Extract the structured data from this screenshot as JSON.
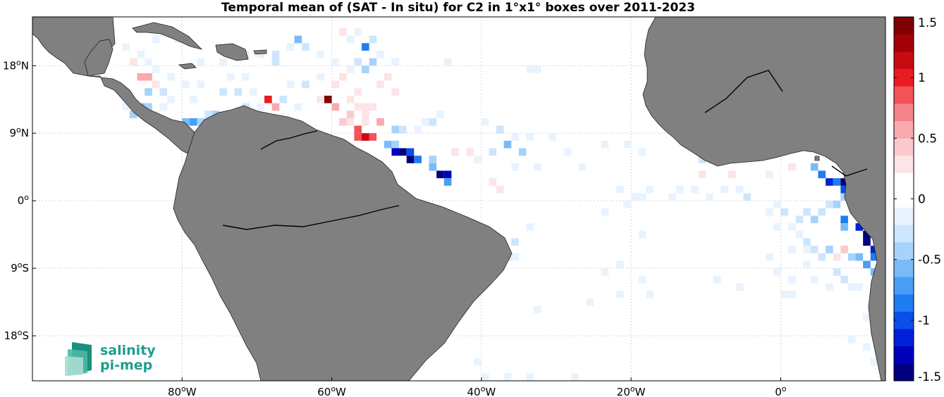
{
  "title": "Temporal mean of (SAT - In situ) for C2 in 1°x1° boxes over 2011-2023",
  "map": {
    "extent": {
      "lon": [
        -100,
        14
      ],
      "lat": [
        -24,
        24.5
      ]
    },
    "lon_ticks": [
      {
        "value": -80,
        "deg": "80",
        "hemi": "W"
      },
      {
        "value": -60,
        "deg": "60",
        "hemi": "W"
      },
      {
        "value": -40,
        "deg": "40",
        "hemi": "W"
      },
      {
        "value": -20,
        "deg": "20",
        "hemi": "W"
      },
      {
        "value": 0,
        "deg": "0",
        "hemi": ""
      }
    ],
    "lat_ticks": [
      {
        "value": 18,
        "deg": "18",
        "hemi": "N"
      },
      {
        "value": 9,
        "deg": "9",
        "hemi": "N"
      },
      {
        "value": 0,
        "deg": "0",
        "hemi": ""
      },
      {
        "value": -9,
        "deg": "9",
        "hemi": "S"
      },
      {
        "value": -18,
        "deg": "18",
        "hemi": "S"
      }
    ],
    "land_color": "#808080",
    "grid": "dotted"
  },
  "colorbar": {
    "min": -1.5,
    "max": 1.5,
    "ticks": [
      "1.5",
      "1",
      "0.5",
      "0",
      "-0.5",
      "-1",
      "-1.5"
    ],
    "tick_values": [
      1.5,
      1,
      0.5,
      0,
      -0.5,
      -1,
      -1.5
    ],
    "colors": [
      "#00007f",
      "#0000bb",
      "#0020d9",
      "#0a4fe8",
      "#1e7df0",
      "#4a9ef5",
      "#79bbf8",
      "#a6d3fb",
      "#cde6fd",
      "#e8f3fe",
      "#ffffff",
      "#ffffff",
      "#fde4e6",
      "#fbc9cd",
      "#f9a9ae",
      "#f6838a",
      "#f15359",
      "#ea1c23",
      "#c80b12",
      "#a30007",
      "#7f0000"
    ]
  },
  "logo": {
    "line1": "salinity",
    "line2": "pi-mep"
  },
  "chart_data": {
    "type": "heatmap",
    "title": "Temporal mean of (SAT - In situ) for C2 in 1°x1° boxes over 2011-2023",
    "cell_size_deg": 1,
    "value_range": [
      -1.5,
      1.5
    ],
    "cells": [
      [
        -55,
        15,
        0.2
      ],
      [
        -56,
        15,
        0.15
      ],
      [
        -57,
        14,
        0.25
      ],
      [
        -58,
        13,
        0.3
      ],
      [
        -57,
        12,
        0.35
      ],
      [
        -56,
        12,
        0.3
      ],
      [
        -55,
        12,
        0.25
      ],
      [
        -54,
        11,
        0.2
      ],
      [
        -53,
        11,
        0.15
      ],
      [
        -52,
        11,
        0.2
      ],
      [
        -56,
        11,
        0.35
      ],
      [
        -58,
        11,
        0.4
      ],
      [
        -59,
        10,
        0.4
      ],
      [
        -58,
        10,
        0.3
      ],
      [
        -56,
        10,
        0.25
      ],
      [
        -54,
        10,
        0.6
      ],
      [
        -53,
        9,
        0.15
      ],
      [
        -57,
        9,
        0.8
      ],
      [
        -55,
        8,
        0.9
      ],
      [
        -56,
        8,
        1.2
      ],
      [
        -57,
        8,
        0.8
      ],
      [
        -54,
        8,
        0.2
      ],
      [
        -53,
        7,
        -0.6
      ],
      [
        -52,
        7,
        -0.4
      ],
      [
        -51,
        6,
        -1.5
      ],
      [
        -52,
        6,
        -1.3
      ],
      [
        -50,
        6,
        -1.0
      ],
      [
        -50,
        5,
        -1.4
      ],
      [
        -49,
        5,
        -0.9
      ],
      [
        -47,
        5,
        -0.4
      ],
      [
        -47,
        4,
        -0.6
      ],
      [
        -46,
        3,
        -1.5
      ],
      [
        -45,
        3,
        -1.3
      ],
      [
        -45,
        2,
        -0.7
      ],
      [
        -52,
        9,
        -0.5
      ],
      [
        -51,
        9,
        -0.3
      ],
      [
        -49,
        9,
        -0.2
      ],
      [
        -48,
        10,
        -0.2
      ],
      [
        -47,
        10,
        -0.3
      ],
      [
        -46,
        11,
        -0.2
      ],
      [
        -44,
        11,
        0.15
      ],
      [
        -42,
        11,
        0.1
      ],
      [
        -40,
        10,
        -0.2
      ],
      [
        -38,
        9,
        -0.3
      ],
      [
        -36,
        8,
        -0.2
      ],
      [
        -34,
        8,
        -0.15
      ],
      [
        -37,
        7,
        -0.6
      ],
      [
        -35,
        6,
        -0.4
      ],
      [
        -39,
        6,
        -0.25
      ],
      [
        -41,
        5,
        -0.2
      ],
      [
        -43,
        5,
        0.2
      ],
      [
        -44,
        6,
        0.3
      ],
      [
        -42,
        6,
        0.25
      ],
      [
        -40,
        4,
        0.2
      ],
      [
        -41,
        2,
        0.2
      ],
      [
        -39,
        2,
        0.3
      ],
      [
        -38,
        1,
        0.25
      ],
      [
        -40,
        0,
        0.2
      ],
      [
        -42,
        1,
        0.15
      ],
      [
        -36,
        4,
        -0.1
      ],
      [
        -33,
        4,
        -0.15
      ],
      [
        -31,
        8,
        -0.2
      ],
      [
        -29,
        6,
        -0.2
      ],
      [
        -27,
        4,
        -0.15
      ],
      [
        -24,
        7,
        -0.1
      ],
      [
        -21,
        7,
        -0.15
      ],
      [
        -19,
        6,
        -0.2
      ],
      [
        -60,
        12,
        0.5
      ],
      [
        -61,
        13,
        1.5
      ],
      [
        -62,
        13,
        0.3
      ],
      [
        -63,
        12,
        0.2
      ],
      [
        -65,
        12,
        -0.2
      ],
      [
        -67,
        13,
        -0.3
      ],
      [
        -68,
        12,
        0.6
      ],
      [
        -69,
        13,
        1.0
      ],
      [
        -70,
        12,
        -0.2
      ],
      [
        -72,
        12,
        -0.3
      ],
      [
        -74,
        11,
        -0.2
      ],
      [
        -76,
        11,
        -0.4
      ],
      [
        -77,
        11,
        -0.3
      ],
      [
        -78,
        10,
        -0.5
      ],
      [
        -79,
        10,
        -0.7
      ],
      [
        -80,
        10,
        -0.6
      ],
      [
        -81,
        9,
        -0.9
      ],
      [
        -82,
        9,
        -0.5
      ],
      [
        -83,
        10,
        -0.3
      ],
      [
        -84,
        11,
        -0.2
      ],
      [
        -83,
        12,
        -0.2
      ],
      [
        -82,
        13,
        -0.15
      ],
      [
        -73,
        9,
        -0.3
      ],
      [
        -75,
        9,
        -0.5
      ],
      [
        -76,
        9,
        -0.6
      ],
      [
        -78,
        18,
        -0.15
      ],
      [
        -75,
        18,
        -0.2
      ],
      [
        -72,
        19,
        -0.15
      ],
      [
        -70,
        19,
        -0.2
      ],
      [
        -68,
        19,
        -0.25
      ],
      [
        -66,
        20,
        -0.3
      ],
      [
        -64,
        20,
        -0.25
      ],
      [
        -62,
        19,
        -0.2
      ],
      [
        -60,
        18,
        -0.15
      ],
      [
        -58,
        17,
        -0.2
      ],
      [
        -57,
        18,
        -0.3
      ],
      [
        -56,
        17,
        -0.4
      ],
      [
        -55,
        18,
        -0.5
      ],
      [
        -54,
        19,
        -0.2
      ],
      [
        -56,
        20,
        -0.8
      ],
      [
        -55,
        21,
        -0.3
      ],
      [
        -57,
        22,
        -0.2
      ],
      [
        -58,
        21,
        -0.15
      ],
      [
        -52,
        18,
        -0.2
      ],
      [
        -51,
        17,
        0.2
      ],
      [
        -53,
        16,
        0.25
      ],
      [
        -54,
        15,
        0.3
      ],
      [
        -52,
        14,
        0.25
      ],
      [
        -50,
        14,
        0.2
      ],
      [
        -49,
        12,
        0.2
      ],
      [
        -47,
        12,
        0.15
      ],
      [
        -65,
        21,
        -0.6
      ],
      [
        -66,
        20,
        -0.2
      ],
      [
        -68,
        18,
        -0.3
      ],
      [
        -70,
        17,
        0.2
      ],
      [
        -72,
        16,
        -0.2
      ],
      [
        -74,
        16,
        -0.15
      ],
      [
        -76,
        16,
        0.2
      ],
      [
        -78,
        15,
        -0.2
      ],
      [
        -80,
        15,
        -0.15
      ],
      [
        -82,
        16,
        -0.2
      ],
      [
        -84,
        17,
        -0.15
      ],
      [
        -85,
        18,
        -0.2
      ],
      [
        -86,
        19,
        -0.15
      ],
      [
        -88,
        20,
        -0.2
      ],
      [
        -87,
        18,
        0.25
      ],
      [
        -86,
        16,
        0.6
      ],
      [
        -85,
        16,
        0.5
      ],
      [
        -84,
        15,
        0.3
      ],
      [
        -83,
        14,
        -0.3
      ],
      [
        -85,
        14,
        -0.4
      ],
      [
        -86,
        13,
        0.2
      ],
      [
        -85,
        12,
        -0.5
      ],
      [
        -86,
        12,
        -0.6
      ],
      [
        -87,
        11,
        -0.4
      ],
      [
        -88,
        12,
        -0.2
      ],
      [
        -89,
        18,
        0.2
      ],
      [
        -90,
        18,
        0.15
      ],
      [
        -84,
        21,
        -0.2
      ],
      [
        -83,
        22,
        -0.15
      ],
      [
        -81,
        21,
        -0.2
      ],
      [
        -59,
        22,
        0.3
      ],
      [
        -59,
        16,
        0.35
      ],
      [
        -60,
        15,
        0.25
      ],
      [
        -62,
        16,
        -0.2
      ],
      [
        -64,
        15,
        -0.25
      ],
      [
        -66,
        15,
        -0.2
      ],
      [
        -68,
        15,
        0.15
      ],
      [
        -71,
        14,
        -0.2
      ],
      [
        -73,
        14,
        -0.25
      ],
      [
        -75,
        14,
        -0.3
      ],
      [
        -77,
        13,
        0.2
      ],
      [
        -79,
        13,
        -0.15
      ],
      [
        -45,
        18,
        -0.2
      ],
      [
        -33,
        17,
        -0.2
      ],
      [
        -34,
        17,
        -0.15
      ],
      [
        -17,
        24,
        0.15
      ],
      [
        -17,
        22,
        0.2
      ],
      [
        -16,
        21,
        -0.1
      ],
      [
        -18,
        14,
        -0.15
      ],
      [
        -17,
        12,
        -0.15
      ],
      [
        -16,
        10,
        -0.6
      ],
      [
        -12,
        8,
        -0.8
      ],
      [
        -11,
        5,
        -0.3
      ],
      [
        -12,
        4,
        0.15
      ],
      [
        -11,
        3,
        0.3
      ],
      [
        -9,
        3,
        0.2
      ],
      [
        -7,
        3,
        0.25
      ],
      [
        -5,
        3,
        0.2
      ],
      [
        -3,
        4,
        0.15
      ],
      [
        -2,
        3,
        -0.2
      ],
      [
        -1,
        3,
        0.2
      ],
      [
        0,
        4,
        0.2
      ],
      [
        1,
        4,
        0.3
      ],
      [
        4,
        4,
        -0.6
      ],
      [
        5,
        3,
        -0.8
      ],
      [
        6,
        2,
        -1.1
      ],
      [
        7,
        2,
        -0.9
      ],
      [
        8,
        2,
        -1.5
      ],
      [
        9,
        2,
        -1.3
      ],
      [
        8,
        1,
        -1.0
      ],
      [
        9,
        1,
        0.9
      ],
      [
        8,
        0,
        -0.5
      ],
      [
        7,
        -1,
        -0.4
      ],
      [
        6,
        -1,
        -0.3
      ],
      [
        5,
        -2,
        -0.3
      ],
      [
        4,
        -3,
        -0.4
      ],
      [
        8,
        -3,
        -0.9
      ],
      [
        8,
        -4,
        -0.6
      ],
      [
        10,
        -4,
        -1.2
      ],
      [
        11,
        -5,
        -1.4
      ],
      [
        11,
        -6,
        -1.5
      ],
      [
        12,
        -7,
        -1.2
      ],
      [
        12,
        -8,
        -0.9
      ],
      [
        13,
        -9,
        -0.7
      ],
      [
        12,
        -10,
        -0.6
      ],
      [
        13,
        -11,
        -0.5
      ],
      [
        13,
        -12,
        -0.4
      ],
      [
        12,
        -13,
        -0.3
      ],
      [
        13,
        -14,
        -0.3
      ],
      [
        3,
        -2,
        -0.3
      ],
      [
        2,
        -3,
        -0.25
      ],
      [
        1,
        -4,
        -0.2
      ],
      [
        0,
        -2,
        -0.25
      ],
      [
        -1,
        -1,
        -0.2
      ],
      [
        -2,
        -2,
        -0.2
      ],
      [
        -1,
        -4,
        -0.15
      ],
      [
        2,
        -5,
        -0.2
      ],
      [
        3,
        -6,
        -0.3
      ],
      [
        4,
        -7,
        -0.35
      ],
      [
        6,
        -7,
        -0.4
      ],
      [
        7,
        -8,
        0.3
      ],
      [
        8,
        -7,
        0.4
      ],
      [
        9,
        -8,
        -0.5
      ],
      [
        10,
        -8,
        -0.6
      ],
      [
        11,
        -9,
        -0.7
      ],
      [
        5,
        -8,
        -0.3
      ],
      [
        3,
        -7,
        -0.2
      ],
      [
        1,
        -7,
        -0.2
      ],
      [
        7,
        -10,
        -0.3
      ],
      [
        8,
        -11,
        -0.25
      ],
      [
        9,
        -12,
        -0.2
      ],
      [
        10,
        -12,
        -0.2
      ],
      [
        6,
        -12,
        -0.2
      ],
      [
        4,
        -11,
        -0.15
      ],
      [
        1,
        -11,
        -0.15
      ],
      [
        -1,
        -10,
        -0.15
      ],
      [
        0,
        -13,
        -0.2
      ],
      [
        1,
        -13,
        -0.2
      ],
      [
        3,
        -9,
        -0.2
      ],
      [
        10,
        -15,
        0.2
      ],
      [
        11,
        -16,
        -0.15
      ],
      [
        12,
        -18,
        -0.15
      ],
      [
        9,
        -19,
        -0.2
      ],
      [
        11,
        -20,
        -0.15
      ],
      [
        12,
        -22,
        -0.2
      ],
      [
        13,
        -23,
        -0.2
      ],
      [
        -5,
        0,
        -0.3
      ],
      [
        -6,
        1,
        -0.2
      ],
      [
        -8,
        1,
        -0.15
      ],
      [
        -10,
        0,
        -0.2
      ],
      [
        -12,
        1,
        -0.15
      ],
      [
        -14,
        1,
        -0.15
      ],
      [
        -15,
        0,
        -0.1
      ],
      [
        -18,
        1,
        -0.15
      ],
      [
        -19,
        0,
        -0.15
      ],
      [
        -20,
        0,
        -0.2
      ],
      [
        -21,
        -1,
        -0.15
      ],
      [
        -22,
        1,
        -0.15
      ],
      [
        -24,
        -2,
        -0.15
      ],
      [
        -19,
        -5,
        -0.1
      ],
      [
        -22,
        -9,
        -0.15
      ],
      [
        -19,
        -11,
        -0.15
      ],
      [
        -18,
        -13,
        -0.2
      ],
      [
        -22,
        -13,
        -0.15
      ],
      [
        -24,
        -10,
        -0.15
      ],
      [
        -6,
        -12,
        -0.15
      ],
      [
        -2,
        -8,
        -0.1
      ],
      [
        -9,
        -11,
        -0.15
      ],
      [
        -34,
        -4,
        -0.2
      ],
      [
        -36,
        -6,
        -0.25
      ],
      [
        -37,
        -8,
        -0.3
      ],
      [
        -38,
        -9,
        -0.2
      ],
      [
        -39,
        -10,
        -0.3
      ],
      [
        -36,
        -8,
        -0.2
      ],
      [
        -33,
        -15,
        -0.2
      ],
      [
        -26,
        -14,
        -0.15
      ],
      [
        -41,
        -22,
        -0.15
      ],
      [
        -40,
        -24,
        -0.15
      ],
      [
        -37,
        -24,
        -0.15
      ],
      [
        -34,
        -24,
        -0.1
      ],
      [
        -28,
        -24,
        -0.1
      ],
      [
        -13,
        -24,
        0.15
      ]
    ]
  }
}
